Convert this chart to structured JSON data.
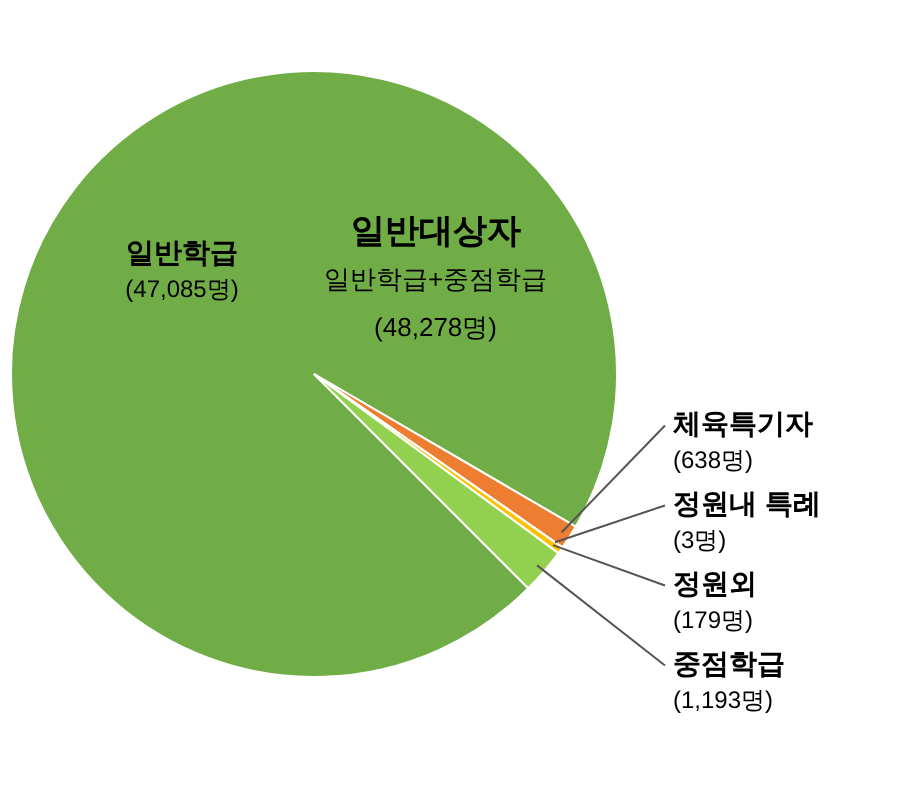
{
  "chart_data": {
    "type": "pie",
    "categories": [
      "일반학급",
      "체육특기자",
      "정원내 특례",
      "정원외",
      "중점학급"
    ],
    "values": [
      47085,
      638,
      3,
      179,
      1193
    ],
    "value_labels": [
      "(47,085명)",
      "(638명)",
      "(3명)",
      "(179명)",
      "(1,193명)"
    ],
    "colors": [
      "#70ad47",
      "#ed7d31",
      "#5b9bd5",
      "#ffc000",
      "#92d050"
    ],
    "annotations": [
      "일반대상자",
      "일반학급+중점학급",
      "(48,278명)"
    ],
    "legend": false
  }
}
